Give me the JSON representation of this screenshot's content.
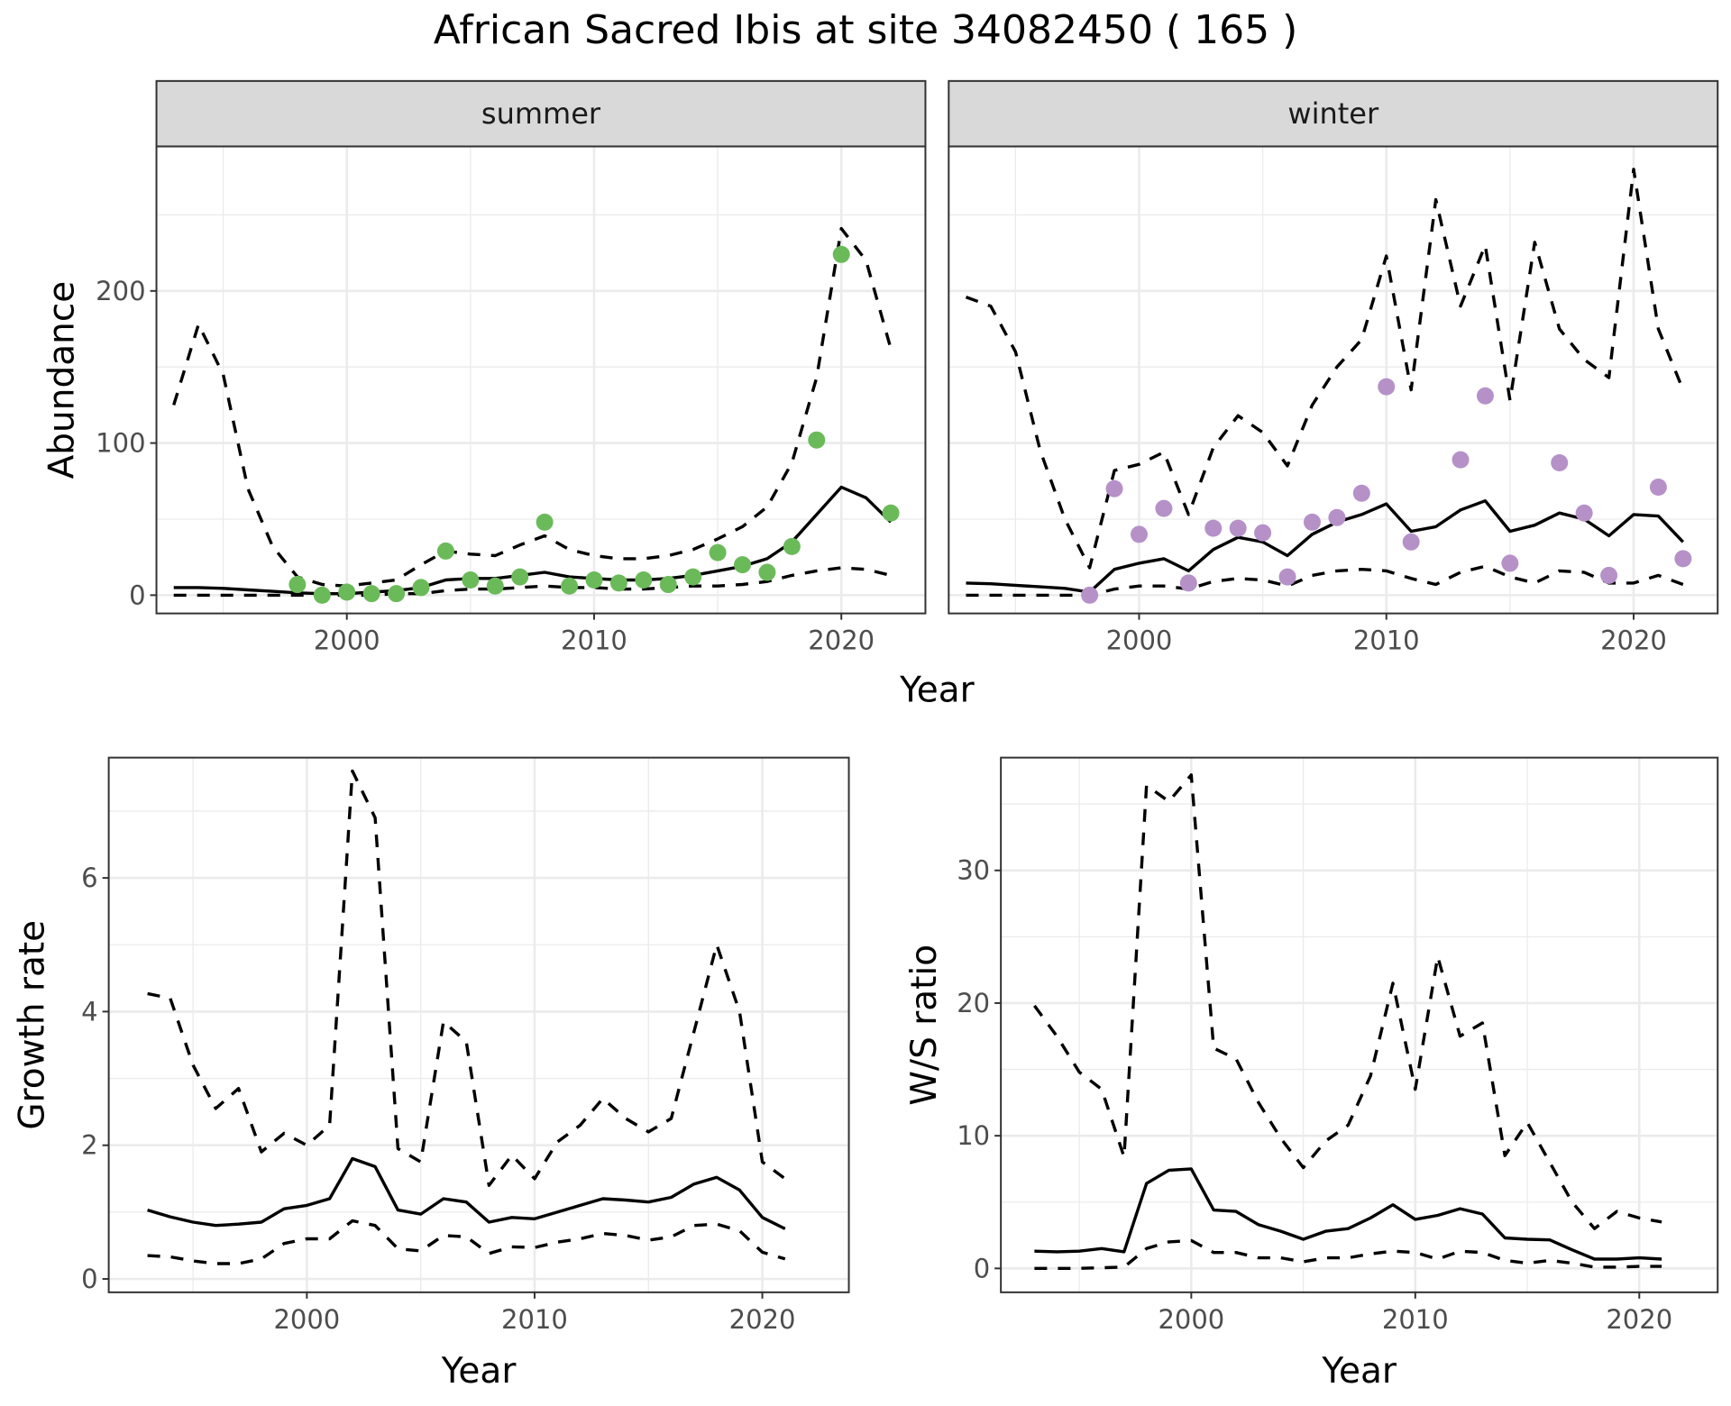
{
  "title": "African Sacred Ibis at site 34082450 ( 165 )",
  "colors": {
    "summer": "#6BBA5A",
    "winter": "#B591C8",
    "line": "#000000",
    "grid": "#EBEBEB",
    "strip": "#D9D9D9"
  },
  "chart_data": [
    {
      "type": "line",
      "panel": "summer",
      "strip_label": "summer",
      "xlabel": "Year",
      "ylabel": "Abundance",
      "xlim": [
        1992.3,
        2023.4
      ],
      "ylim": [
        -12,
        295
      ],
      "xticks": [
        2000,
        2010,
        2020
      ],
      "yticks": [
        0,
        100,
        200
      ],
      "grid": true,
      "series": [
        {
          "name": "fitted",
          "style": "solid",
          "x": [
            1993,
            1994,
            1995,
            1996,
            1997,
            1998,
            1999,
            2000,
            2001,
            2002,
            2003,
            2004,
            2005,
            2006,
            2007,
            2008,
            2009,
            2010,
            2011,
            2012,
            2013,
            2014,
            2015,
            2016,
            2017,
            2018,
            2019,
            2020,
            2021,
            2022
          ],
          "y": [
            5,
            5,
            4.5,
            3.5,
            2.5,
            1.5,
            1,
            1,
            2,
            3,
            5,
            10,
            11,
            11,
            13,
            15,
            12,
            11,
            10,
            10,
            11,
            13,
            16,
            19,
            24,
            35,
            53,
            71,
            64,
            48
          ]
        },
        {
          "name": "upper",
          "style": "dashed",
          "x": [
            1993,
            1994,
            1995,
            1996,
            1997,
            1998,
            1999,
            2000,
            2001,
            2002,
            2003,
            2004,
            2005,
            2006,
            2007,
            2008,
            2009,
            2010,
            2011,
            2012,
            2013,
            2014,
            2015,
            2016,
            2017,
            2018,
            2019,
            2020,
            2021,
            2022
          ],
          "y": [
            125,
            178,
            145,
            70,
            32,
            12,
            7,
            6,
            8,
            10,
            20,
            29,
            27,
            26,
            33,
            39,
            30,
            26,
            24,
            24,
            26,
            30,
            37,
            45,
            58,
            87,
            143,
            241,
            220,
            162
          ]
        },
        {
          "name": "lower",
          "style": "dashed",
          "x": [
            1993,
            1994,
            1995,
            1996,
            1997,
            1998,
            1999,
            2000,
            2001,
            2002,
            2003,
            2004,
            2005,
            2006,
            2007,
            2008,
            2009,
            2010,
            2011,
            2012,
            2013,
            2014,
            2015,
            2016,
            2017,
            2018,
            2019,
            2020,
            2021,
            2022
          ],
          "y": [
            0,
            0,
            0,
            0,
            0,
            0,
            0,
            0,
            0,
            1,
            1,
            3,
            4,
            4,
            5,
            6,
            5,
            5,
            4,
            4,
            5,
            6,
            6,
            7,
            9,
            13,
            16,
            18,
            17,
            13
          ]
        },
        {
          "name": "observed",
          "style": "points",
          "x": [
            1998,
            1999,
            2000,
            2001,
            2002,
            2003,
            2004,
            2005,
            2006,
            2007,
            2008,
            2009,
            2010,
            2011,
            2012,
            2013,
            2014,
            2015,
            2016,
            2017,
            2018,
            2019,
            2020,
            2022
          ],
          "y": [
            7,
            0,
            2,
            1,
            1,
            5,
            29,
            10,
            6,
            12,
            48,
            6,
            10,
            8,
            10,
            7,
            12,
            28,
            20,
            15,
            32,
            102,
            224,
            54
          ]
        }
      ]
    },
    {
      "type": "line",
      "panel": "winter",
      "strip_label": "winter",
      "xlabel": "Year",
      "ylabel": "Abundance",
      "xlim": [
        1992.3,
        2023.4
      ],
      "ylim": [
        -12,
        295
      ],
      "xticks": [
        2000,
        2010,
        2020
      ],
      "yticks": [
        0,
        100,
        200
      ],
      "grid": true,
      "series": [
        {
          "name": "fitted",
          "style": "solid",
          "x": [
            1993,
            1994,
            1995,
            1996,
            1997,
            1998,
            1999,
            2000,
            2001,
            2002,
            2003,
            2004,
            2005,
            2006,
            2007,
            2008,
            2009,
            2010,
            2011,
            2012,
            2013,
            2014,
            2015,
            2016,
            2017,
            2018,
            2019,
            2020,
            2021,
            2022
          ],
          "y": [
            8,
            7.5,
            6.5,
            5.5,
            4.5,
            2,
            17,
            21,
            24,
            16,
            30,
            38,
            35,
            26,
            40,
            48,
            53,
            60,
            42,
            45,
            56,
            62,
            42,
            46,
            54,
            50,
            39,
            53,
            52,
            35
          ]
        },
        {
          "name": "upper",
          "style": "dashed",
          "x": [
            1993,
            1994,
            1995,
            1996,
            1997,
            1998,
            1999,
            2000,
            2001,
            2002,
            2003,
            2004,
            2005,
            2006,
            2007,
            2008,
            2009,
            2010,
            2011,
            2012,
            2013,
            2014,
            2015,
            2016,
            2017,
            2018,
            2019,
            2020,
            2021,
            2022
          ],
          "y": [
            196,
            190,
            160,
            95,
            50,
            18,
            82,
            86,
            94,
            53,
            97,
            118,
            107,
            85,
            125,
            150,
            168,
            223,
            135,
            260,
            190,
            230,
            128,
            232,
            175,
            155,
            143,
            280,
            175,
            135
          ]
        },
        {
          "name": "lower",
          "style": "dashed",
          "x": [
            1993,
            1994,
            1995,
            1996,
            1997,
            1998,
            1999,
            2000,
            2001,
            2002,
            2003,
            2004,
            2005,
            2006,
            2007,
            2008,
            2009,
            2010,
            2011,
            2012,
            2013,
            2014,
            2015,
            2016,
            2017,
            2018,
            2019,
            2020,
            2021,
            2022
          ],
          "y": [
            0,
            0,
            0,
            0,
            0,
            0,
            4,
            6,
            6,
            4,
            9,
            11,
            10,
            6,
            13,
            16,
            17,
            16,
            11,
            7,
            15,
            19,
            12,
            8,
            16,
            15,
            8,
            8,
            13,
            7
          ]
        },
        {
          "name": "observed",
          "style": "points",
          "x": [
            1998,
            1999,
            2000,
            2001,
            2002,
            2003,
            2004,
            2005,
            2006,
            2007,
            2008,
            2009,
            2010,
            2011,
            2012,
            2013,
            2014,
            2015,
            2017,
            2018,
            2019,
            2021,
            2022
          ],
          "y": [
            0,
            70,
            40,
            57,
            8,
            44,
            44,
            41,
            12,
            48,
            51,
            67,
            137,
            35,
            null,
            89,
            131,
            21,
            87,
            54,
            13,
            71,
            24
          ]
        }
      ]
    },
    {
      "type": "line",
      "panel": "growth",
      "xlabel": "Year",
      "ylabel": "Growth rate",
      "xlim": [
        1991.3,
        2023.8
      ],
      "ylim": [
        -0.2,
        7.8
      ],
      "xticks": [
        2000,
        2010,
        2020
      ],
      "yticks": [
        0,
        2,
        4,
        6
      ],
      "grid": true,
      "series": [
        {
          "name": "fitted",
          "style": "solid",
          "x": [
            1993,
            1994,
            1995,
            1996,
            1997,
            1998,
            1999,
            2000,
            2001,
            2002,
            2003,
            2004,
            2005,
            2006,
            2007,
            2008,
            2009,
            2010,
            2011,
            2012,
            2013,
            2014,
            2015,
            2016,
            2017,
            2018,
            2019,
            2020,
            2021
          ],
          "y": [
            1.03,
            0.93,
            0.85,
            0.8,
            0.82,
            0.85,
            1.05,
            1.1,
            1.2,
            1.8,
            1.68,
            1.03,
            0.97,
            1.2,
            1.15,
            0.85,
            0.92,
            0.9,
            1.0,
            1.1,
            1.2,
            1.18,
            1.15,
            1.22,
            1.42,
            1.52,
            1.33,
            0.92,
            0.75
          ]
        },
        {
          "name": "upper",
          "style": "dashed",
          "x": [
            1993,
            1994,
            1995,
            1996,
            1997,
            1998,
            1999,
            2000,
            2001,
            2002,
            2003,
            2004,
            2005,
            2006,
            2007,
            2008,
            2009,
            2010,
            2011,
            2012,
            2013,
            2014,
            2015,
            2016,
            2017,
            2018,
            2019,
            2020,
            2021
          ],
          "y": [
            4.27,
            4.2,
            3.2,
            2.55,
            2.85,
            1.9,
            2.18,
            2.0,
            2.3,
            7.6,
            6.9,
            1.95,
            1.75,
            3.85,
            3.55,
            1.4,
            1.85,
            1.5,
            2.05,
            2.3,
            2.7,
            2.4,
            2.2,
            2.4,
            3.7,
            5.0,
            4.0,
            1.75,
            1.5
          ]
        },
        {
          "name": "lower",
          "style": "dashed",
          "x": [
            1993,
            1994,
            1995,
            1996,
            1997,
            1998,
            1999,
            2000,
            2001,
            2002,
            2003,
            2004,
            2005,
            2006,
            2007,
            2008,
            2009,
            2010,
            2011,
            2012,
            2013,
            2014,
            2015,
            2016,
            2017,
            2018,
            2019,
            2020,
            2021
          ],
          "y": [
            0.35,
            0.33,
            0.27,
            0.23,
            0.23,
            0.3,
            0.53,
            0.6,
            0.6,
            0.87,
            0.8,
            0.45,
            0.42,
            0.65,
            0.63,
            0.38,
            0.48,
            0.47,
            0.55,
            0.6,
            0.68,
            0.65,
            0.58,
            0.63,
            0.8,
            0.82,
            0.72,
            0.4,
            0.3
          ]
        }
      ]
    },
    {
      "type": "line",
      "panel": "ws_ratio",
      "xlabel": "Year",
      "ylabel": "W/S ratio",
      "xlim": [
        1991.5,
        2023.5
      ],
      "ylim": [
        -1.8,
        38.5
      ],
      "xticks": [
        2000,
        2010,
        2020
      ],
      "yticks": [
        0,
        10,
        20,
        30
      ],
      "grid": true,
      "series": [
        {
          "name": "fitted",
          "style": "solid",
          "x": [
            1993,
            1994,
            1995,
            1996,
            1997,
            1998,
            1999,
            2000,
            2001,
            2002,
            2003,
            2004,
            2005,
            2006,
            2007,
            2008,
            2009,
            2010,
            2011,
            2012,
            2013,
            2014,
            2015,
            2016,
            2017,
            2018,
            2019,
            2020,
            2021
          ],
          "y": [
            1.3,
            1.25,
            1.3,
            1.5,
            1.25,
            6.4,
            7.4,
            7.5,
            4.4,
            4.3,
            3.3,
            2.8,
            2.2,
            2.8,
            3.0,
            3.8,
            4.8,
            3.7,
            4.0,
            4.5,
            4.1,
            2.3,
            2.2,
            2.15,
            1.4,
            0.7,
            0.7,
            0.8,
            0.7
          ]
        },
        {
          "name": "upper",
          "style": "dashed",
          "x": [
            1993,
            1994,
            1995,
            1996,
            1997,
            1998,
            1999,
            2000,
            2001,
            2002,
            2003,
            2004,
            2005,
            2006,
            2007,
            2008,
            2009,
            2010,
            2011,
            2012,
            2013,
            2014,
            2015,
            2016,
            2017,
            2018,
            2019,
            2020,
            2021
          ],
          "y": [
            19.8,
            17.5,
            14.8,
            13.5,
            8.4,
            36.4,
            35.2,
            37.2,
            16.6,
            15.8,
            12.5,
            9.8,
            7.6,
            9.6,
            10.8,
            14.5,
            21.5,
            13.5,
            23.5,
            17.5,
            18.5,
            8.5,
            11.0,
            8.0,
            5.0,
            3.0,
            4.3,
            3.8,
            3.5
          ]
        },
        {
          "name": "lower",
          "style": "dashed",
          "x": [
            1993,
            1994,
            1995,
            1996,
            1997,
            1998,
            1999,
            2000,
            2001,
            2002,
            2003,
            2004,
            2005,
            2006,
            2007,
            2008,
            2009,
            2010,
            2011,
            2012,
            2013,
            2014,
            2015,
            2016,
            2017,
            2018,
            2019,
            2020,
            2021
          ],
          "y": [
            0,
            0,
            0,
            0.05,
            0.1,
            1.5,
            2.0,
            2.1,
            1.2,
            1.2,
            0.8,
            0.8,
            0.5,
            0.8,
            0.8,
            1.1,
            1.3,
            1.2,
            0.7,
            1.3,
            1.2,
            0.6,
            0.4,
            0.6,
            0.4,
            0.1,
            0.1,
            0.15,
            0.15
          ]
        }
      ]
    }
  ]
}
